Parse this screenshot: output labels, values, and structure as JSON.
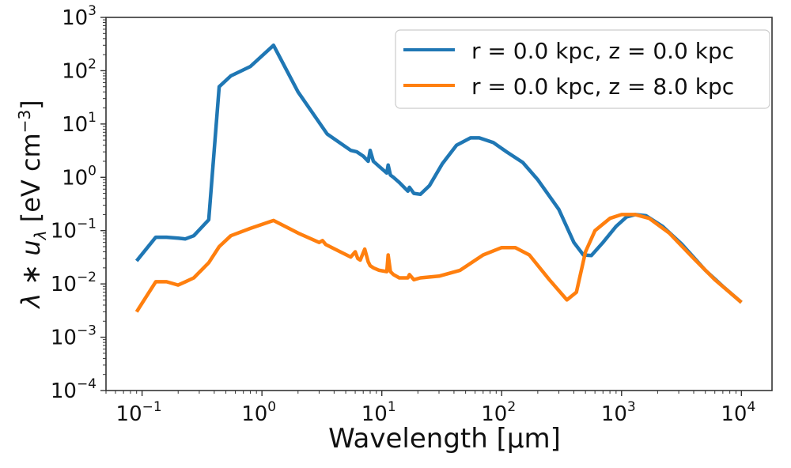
{
  "chart_data": {
    "type": "line",
    "title": "",
    "xlabel": "Wavelength [µm]",
    "ylabel": "λ * u_λ [eV cm^-3]",
    "xscale": "log",
    "yscale": "log",
    "xlim": [
      0.05,
      18000
    ],
    "ylim": [
      0.0001,
      1000
    ],
    "x_ticks": [
      {
        "value": 0.1,
        "base": "10",
        "exp": "−1"
      },
      {
        "value": 1,
        "base": "10",
        "exp": "0"
      },
      {
        "value": 10,
        "base": "10",
        "exp": "1"
      },
      {
        "value": 100,
        "base": "10",
        "exp": "2"
      },
      {
        "value": 1000,
        "base": "10",
        "exp": "3"
      },
      {
        "value": 10000,
        "base": "10",
        "exp": "4"
      }
    ],
    "y_ticks": [
      {
        "value": 0.0001,
        "base": "10",
        "exp": "−4"
      },
      {
        "value": 0.001,
        "base": "10",
        "exp": "−3"
      },
      {
        "value": 0.01,
        "base": "10",
        "exp": "−2"
      },
      {
        "value": 0.1,
        "base": "10",
        "exp": "−1"
      },
      {
        "value": 1,
        "base": "10",
        "exp": "0"
      },
      {
        "value": 10,
        "base": "10",
        "exp": "1"
      },
      {
        "value": 100,
        "base": "10",
        "exp": "2"
      },
      {
        "value": 1000,
        "base": "10",
        "exp": "3"
      }
    ],
    "grid": false,
    "legend_position": "top-right",
    "series": [
      {
        "name": "r = 0.0 kpc, z = 0.0 kpc",
        "color": "#1f77b4",
        "x": [
          0.09,
          0.13,
          0.16,
          0.2,
          0.23,
          0.27,
          0.36,
          0.44,
          0.55,
          0.8,
          1.25,
          2.0,
          3.5,
          5.5,
          6.2,
          7.0,
          7.7,
          8.0,
          8.5,
          9.5,
          11.0,
          11.3,
          11.8,
          12.5,
          14.0,
          16.5,
          17.0,
          18.5,
          21,
          25,
          32,
          42,
          55,
          65,
          85,
          110,
          150,
          200,
          300,
          400,
          480,
          560,
          700,
          900,
          1100,
          1300,
          1600,
          2200,
          3200,
          5000,
          7000,
          10000
        ],
        "values": [
          0.027,
          0.075,
          0.075,
          0.072,
          0.07,
          0.08,
          0.16,
          50,
          80,
          120,
          300,
          40,
          6.5,
          3.2,
          3.0,
          2.5,
          2.0,
          3.2,
          2.0,
          1.6,
          1.2,
          1.7,
          1.1,
          1.0,
          0.8,
          0.55,
          0.65,
          0.5,
          0.48,
          0.7,
          1.8,
          4.0,
          5.5,
          5.5,
          4.5,
          3.0,
          1.9,
          0.9,
          0.25,
          0.06,
          0.035,
          0.034,
          0.06,
          0.12,
          0.18,
          0.2,
          0.19,
          0.12,
          0.055,
          0.018,
          0.009,
          0.0045
        ]
      },
      {
        "name": "r = 0.0 kpc, z = 8.0 kpc",
        "color": "#ff7f0e",
        "x": [
          0.09,
          0.13,
          0.16,
          0.2,
          0.23,
          0.27,
          0.36,
          0.44,
          0.55,
          0.8,
          1.25,
          2.0,
          3.0,
          3.2,
          3.4,
          4.5,
          5.5,
          6.0,
          6.3,
          6.6,
          7.2,
          7.7,
          8.0,
          8.5,
          9.5,
          11.0,
          11.3,
          11.8,
          12.5,
          14.0,
          16.5,
          17.0,
          18.5,
          21,
          30,
          45,
          70,
          100,
          130,
          170,
          250,
          350,
          420,
          500,
          600,
          800,
          1000,
          1300,
          1700,
          2500,
          4000,
          6000,
          10000
        ],
        "values": [
          0.003,
          0.011,
          0.011,
          0.0095,
          0.011,
          0.013,
          0.025,
          0.05,
          0.08,
          0.11,
          0.155,
          0.09,
          0.06,
          0.065,
          0.055,
          0.04,
          0.032,
          0.04,
          0.03,
          0.028,
          0.045,
          0.026,
          0.022,
          0.02,
          0.018,
          0.017,
          0.035,
          0.017,
          0.015,
          0.013,
          0.013,
          0.015,
          0.012,
          0.013,
          0.014,
          0.018,
          0.035,
          0.048,
          0.048,
          0.035,
          0.012,
          0.005,
          0.007,
          0.04,
          0.1,
          0.17,
          0.2,
          0.2,
          0.17,
          0.09,
          0.03,
          0.012,
          0.0045
        ]
      }
    ]
  }
}
